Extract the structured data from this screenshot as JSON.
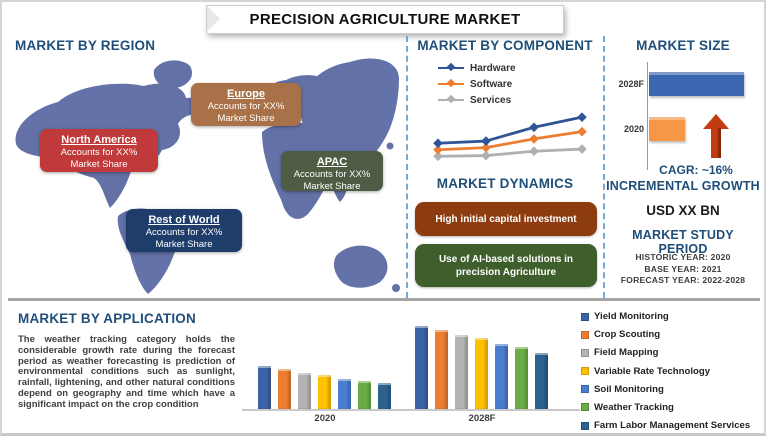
{
  "title": "PRECISION AGRICULTURE MARKET",
  "regions": {
    "heading": "MARKET BY REGION",
    "labels": [
      {
        "name": "North America",
        "line1": "Accounts for XX%",
        "line2": "Market Share",
        "color": "#C0393B"
      },
      {
        "name": "Europe",
        "line1": "Accounts for XX%",
        "line2": "Market Share",
        "color": "#A87147"
      },
      {
        "name": "APAC",
        "line1": "Accounts for XX%",
        "line2": "Market Share",
        "color": "#4E5C44"
      },
      {
        "name": "Rest of World",
        "line1": "Accounts for XX%",
        "line2": "Market Share",
        "color": "#1E3D6B"
      }
    ]
  },
  "component": {
    "heading": "MARKET BY COMPONENT"
  },
  "dynamics": {
    "heading": "MARKET DYNAMICS",
    "items": [
      {
        "text": "High initial capital investment",
        "color": "#8C3C0F"
      },
      {
        "text": "Use of AI-based solutions in precision Agriculture",
        "color": "#3E5F2B"
      }
    ]
  },
  "market_size": {
    "heading": "MARKET SIZE",
    "cagr": "CAGR:  ~16%"
  },
  "incremental_growth": {
    "heading": "INCREMENTAL GROWTH",
    "value": "USD XX BN"
  },
  "study_period": {
    "heading": "MARKET STUDY PERIOD",
    "lines": [
      "HISTORIC YEAR: 2020",
      "BASE YEAR: 2021",
      "FORECAST YEAR: 2022-2028"
    ]
  },
  "application": {
    "heading": "MARKET BY APPLICATION",
    "paragraph": "The weather tracking category holds the considerable growth rate during the forecast period as weather forecasting is prediction of environmental conditions such as sunlight, rainfall, lightening, and other natural conditions depend on geography and time which have a significant impact on the crop condition"
  },
  "accent_color": "#1F4E79",
  "map_color": "#5D6CA4",
  "chart_data": [
    {
      "id": "component-trend",
      "type": "line",
      "title": "MARKET BY COMPONENT",
      "x": [
        1,
        2,
        3,
        4
      ],
      "series": [
        {
          "name": "Hardware",
          "color": "#2F5597",
          "values": [
            3.0,
            3.3,
            5.2,
            6.6
          ]
        },
        {
          "name": "Software",
          "color": "#ED7D31",
          "values": [
            2.1,
            2.4,
            3.6,
            4.6
          ]
        },
        {
          "name": "Services",
          "color": "#B0B0B0",
          "values": [
            1.2,
            1.3,
            1.9,
            2.2
          ]
        }
      ],
      "ylim": [
        0,
        8
      ],
      "grid": false,
      "legend_position": "top-left"
    },
    {
      "id": "market-size",
      "type": "bar",
      "orientation": "horizontal",
      "categories": [
        "2028F",
        "2020"
      ],
      "values": [
        9.5,
        3.6
      ],
      "colors": [
        "#3B66B0",
        "#F79646"
      ],
      "xlim": [
        0,
        10
      ],
      "annotation": "CAGR:  ~16%"
    },
    {
      "id": "application-by-segment",
      "type": "bar",
      "categories": [
        "2020",
        "2028F"
      ],
      "series": [
        {
          "name": "Yield Monitoring",
          "color": "#3C62A7",
          "values": [
            3.8,
            7.4
          ]
        },
        {
          "name": "Crop Scouting",
          "color": "#ED7D31",
          "values": [
            3.6,
            7.0
          ]
        },
        {
          "name": "Field Mapping",
          "color": "#B3B3B3",
          "values": [
            3.2,
            6.6
          ]
        },
        {
          "name": "Variable Rate Technology",
          "color": "#FFC000",
          "values": [
            3.0,
            6.3
          ]
        },
        {
          "name": "Soil Monitoring",
          "color": "#4A7CCF",
          "values": [
            2.7,
            5.8
          ]
        },
        {
          "name": "Weather Tracking",
          "color": "#6AAD45",
          "values": [
            2.5,
            5.5
          ]
        },
        {
          "name": "Farm Labor Management Services",
          "color": "#2C628F",
          "values": [
            2.3,
            5.0
          ]
        }
      ],
      "ylim": [
        0,
        8
      ],
      "grid": false,
      "legend_position": "right"
    }
  ]
}
